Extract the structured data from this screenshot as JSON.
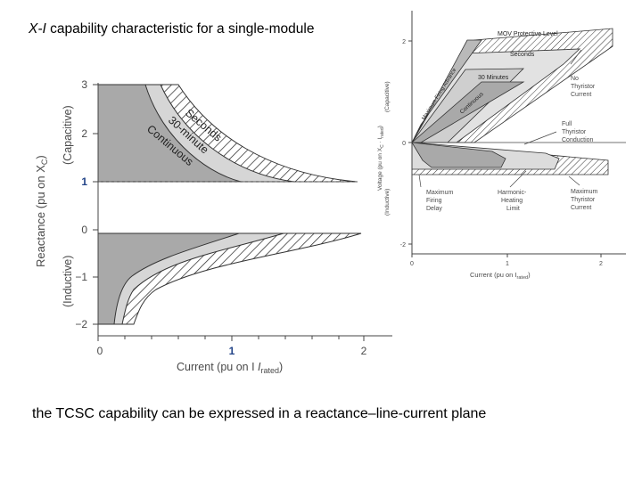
{
  "slide": {
    "title_italic": "X-I",
    "title_rest": " capability characteristic for a single-module",
    "caption": "the TCSC capability can be expressed in a reactance–line-current plane"
  },
  "left_figure": {
    "ylabel": "Reactance (pu on X",
    "ylabel_sub": "C",
    "ylabel_end": ")",
    "cap_label": "(Capacitive)",
    "ind_label": "(Inductive)",
    "y_ticks": [
      "3",
      "2",
      "1",
      "0",
      "−1",
      "−2"
    ],
    "x_ticks": [
      "0",
      "1",
      "2"
    ],
    "xlabel": "Current (pu on I",
    "xlabel_sub": "rated",
    "xlabel_end": ")",
    "curve_labels": {
      "seconds": "Seconds",
      "thirty_min": "30-minute",
      "continuous": "Continuous"
    }
  },
  "right_figure": {
    "ylabel": "Voltage (pu on X",
    "ylabel_sub": "C",
    "ylabel_mid": " · I",
    "ylabel_sub2": "rated",
    "ylabel_end": ")",
    "cap_label": "(Capacitive)",
    "ind_label": "(Inductive)",
    "y_ticks": [
      "2",
      "0",
      "-2"
    ],
    "x_ticks": [
      "0",
      "1",
      "2"
    ],
    "xlabel": "Current (pu on I",
    "xlabel_sub": "rated",
    "xlabel_end": ")",
    "regions": {
      "mov": "MOV Protective Level",
      "seconds": "Seconds",
      "thirty": "30 Minutes",
      "max_firing": "Maximum Firing Advance",
      "continuous": "Continuous"
    },
    "annotations": {
      "no_thyristor": [
        "No",
        "Thyristor",
        "Current"
      ],
      "full_thyristor": [
        "Full",
        "Thyristor",
        "Conduction"
      ],
      "max_firing_delay": [
        "Maximum",
        "Firing",
        "Delay"
      ],
      "harmonic": [
        "Harmonic-",
        "Heating",
        "Limit"
      ],
      "max_thyristor": [
        "Maximum",
        "Thyristor",
        "Current"
      ]
    }
  },
  "colors": {
    "dark_region": "#a9a9a9",
    "light_region": "#d6d6d6",
    "outline": "#333333"
  }
}
